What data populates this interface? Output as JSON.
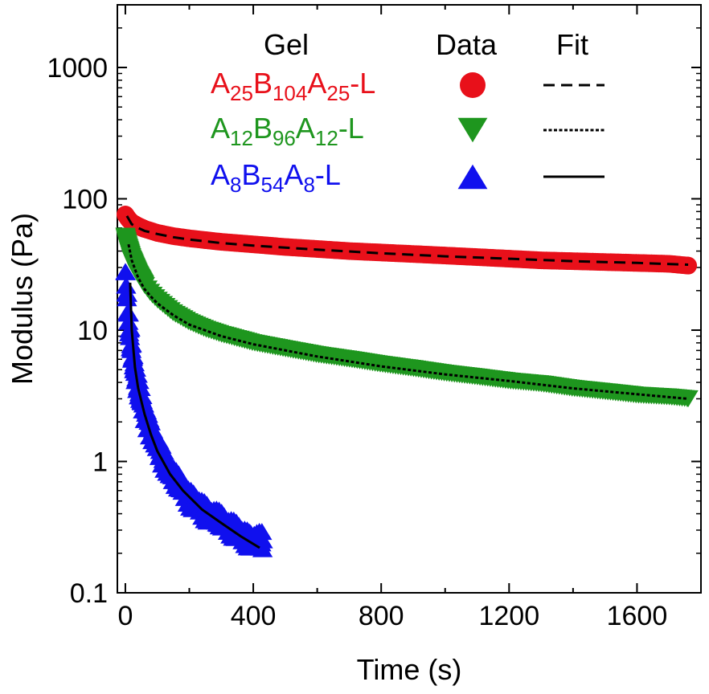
{
  "chart_data": {
    "type": "scatter",
    "title": "",
    "xlabel": "Time (s)",
    "ylabel": "Modulus (Pa)",
    "xlim": [
      -25,
      1800
    ],
    "ylim": [
      0.1,
      3000
    ],
    "yscale": "log",
    "grid": false,
    "x_ticks": [
      0,
      400,
      800,
      1200,
      1600
    ],
    "x_tick_labels": [
      "0",
      "400",
      "800",
      "1200",
      "1600"
    ],
    "y_ticks": [
      0.1,
      1,
      10,
      100,
      1000
    ],
    "y_tick_labels": [
      "0.1",
      "1",
      "10",
      "100",
      "1000"
    ],
    "legend": {
      "placement": "top-right",
      "headers": [
        "Gel",
        "Data",
        "Fit"
      ],
      "entries": [
        {
          "gel": {
            "prefix": "A",
            "s1": "25",
            "mid": "B",
            "s2": "104",
            "suffixA": "A",
            "s3": "25",
            "tail": "-L"
          },
          "marker": "circle",
          "fit_style": "dashed",
          "color": "#e8101a"
        },
        {
          "gel": {
            "prefix": "A",
            "s1": "12",
            "mid": "B",
            "s2": "96",
            "suffixA": "A",
            "s3": "12",
            "tail": "-L"
          },
          "marker": "triangle-down",
          "fit_style": "dotted",
          "color": "#1e961e"
        },
        {
          "gel": {
            "prefix": "A",
            "s1": "8",
            "mid": "B",
            "s2": "54",
            "suffixA": "A",
            "s3": "8",
            "tail": "-L"
          },
          "marker": "triangle-up",
          "fit_style": "solid",
          "color": "#1010ee"
        }
      ]
    },
    "fit_color": "#000000",
    "series": [
      {
        "name": "A25B104A25-L",
        "marker": "circle",
        "color": "#e8101a",
        "x": [
          0,
          10,
          20,
          40,
          60,
          80,
          100,
          150,
          200,
          300,
          400,
          500,
          600,
          700,
          800,
          900,
          1000,
          1100,
          1200,
          1300,
          1400,
          1500,
          1600,
          1700,
          1760
        ],
        "y": [
          76,
          70,
          66,
          62,
          59,
          57,
          55,
          52,
          50,
          47,
          45,
          43,
          41.5,
          40,
          39,
          38,
          37,
          36,
          35,
          34,
          33.5,
          33,
          32.5,
          32,
          31
        ]
      },
      {
        "name": "A12B96A12-L",
        "marker": "triangle-down",
        "color": "#1e961e",
        "x": [
          0,
          10,
          20,
          40,
          60,
          80,
          100,
          150,
          200,
          250,
          300,
          400,
          500,
          600,
          700,
          800,
          900,
          1000,
          1100,
          1200,
          1300,
          1400,
          1500,
          1600,
          1700,
          1760
        ],
        "y": [
          52,
          42,
          35,
          27,
          22,
          19,
          17,
          13.5,
          11.5,
          10.2,
          9.3,
          8,
          7.2,
          6.5,
          6,
          5.5,
          5.1,
          4.7,
          4.4,
          4.1,
          3.9,
          3.6,
          3.4,
          3.2,
          3.1,
          3
        ]
      },
      {
        "name": "A8B54A8-L",
        "marker": "triangle-up",
        "color": "#1010ee",
        "x": [
          0,
          5,
          10,
          20,
          30,
          40,
          60,
          80,
          100,
          120,
          140,
          160,
          200,
          240,
          280,
          320,
          360,
          400,
          430
        ],
        "y": [
          28,
          18,
          12,
          7,
          5,
          3.8,
          2.5,
          1.8,
          1.35,
          1.05,
          0.85,
          0.72,
          0.55,
          0.45,
          0.38,
          0.33,
          0.29,
          0.26,
          0.25
        ]
      }
    ],
    "fits": [
      {
        "series": "A25B104A25-L",
        "style": "dashed",
        "x": [
          5,
          20,
          40,
          60,
          100,
          150,
          200,
          300,
          400,
          600,
          800,
          1000,
          1200,
          1400,
          1600,
          1760
        ],
        "y": [
          74,
          64,
          60,
          57,
          54,
          51,
          49,
          46,
          44,
          41,
          38.5,
          36.5,
          35,
          33.5,
          32.5,
          31.5
        ]
      },
      {
        "series": "A12B96A12-L",
        "style": "dotted",
        "x": [
          10,
          20,
          40,
          60,
          80,
          100,
          150,
          200,
          300,
          400,
          600,
          800,
          1000,
          1200,
          1400,
          1600,
          1760
        ],
        "y": [
          45,
          34,
          25,
          20.5,
          18,
          16,
          13,
          11,
          9,
          7.8,
          6.3,
          5.3,
          4.6,
          4.1,
          3.6,
          3.25,
          3
        ]
      },
      {
        "series": "A8B54A8-L",
        "style": "solid",
        "x": [
          15,
          20,
          30,
          40,
          60,
          80,
          100,
          140,
          180,
          240,
          300,
          360,
          420
        ],
        "y": [
          23,
          10,
          5.2,
          3.6,
          2.3,
          1.6,
          1.2,
          0.8,
          0.6,
          0.43,
          0.34,
          0.27,
          0.22
        ]
      }
    ]
  }
}
